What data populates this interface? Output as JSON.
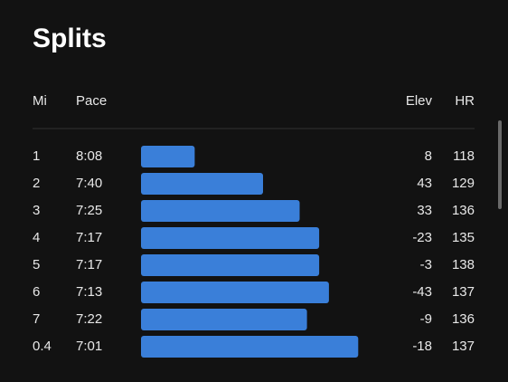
{
  "title": "Splits",
  "table": {
    "header": [
      "Mi",
      "Pace",
      "Elev",
      "HR"
    ],
    "rows": [
      [
        1,
        "8:08",
        8,
        118
      ],
      [
        2,
        "7:40",
        43,
        129
      ],
      [
        3,
        "7:25",
        33,
        136
      ],
      [
        4,
        "7:17",
        -23,
        135
      ],
      [
        5,
        "7:17",
        -3,
        138
      ],
      [
        6,
        "7:13",
        -43,
        137
      ],
      [
        7,
        "7:22",
        -9,
        136
      ],
      [
        0.4,
        "7:01",
        -18,
        137
      ]
    ]
  }
}
